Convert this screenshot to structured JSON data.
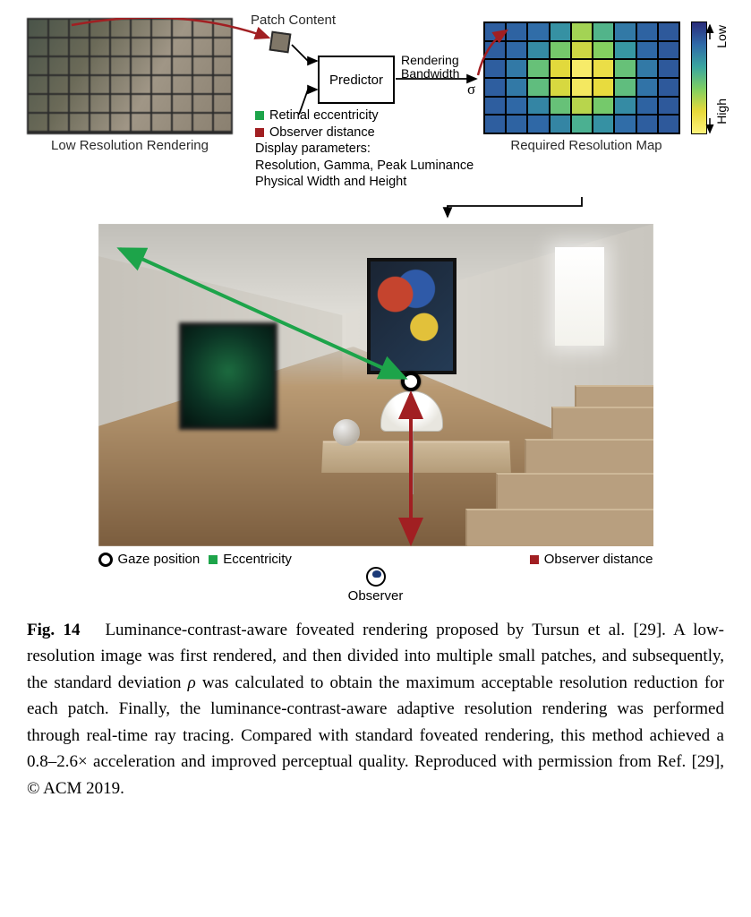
{
  "figure": {
    "top": {
      "lowres_caption": "Low Resolution Rendering",
      "patch_content_label": "Patch Content",
      "predictor_label": "Predictor",
      "rendering_bandwidth_label": "Rendering\nBandwidth",
      "resmap_caption": "Required Resolution Map",
      "colorbar": {
        "low": "Low",
        "high": "High"
      },
      "params": {
        "eccentricity": "Retinal eccentricity",
        "observer_dist": "Observer distance",
        "display_header": "Display parameters:",
        "display_line2": "Resolution, Gamma, Peak Luminance",
        "display_line3": "Physical Width and Height"
      },
      "colors": {
        "eccentricity": "#1da44a",
        "observer_dist": "#a11f22",
        "patch_arrow": "#a11f22",
        "sigma_arrow": "#a11f22"
      },
      "resolution_map": {
        "rows": 6,
        "cols": 9,
        "cells": [
          [
            0.2,
            0.22,
            0.26,
            0.38,
            0.72,
            0.52,
            0.3,
            0.22,
            0.18
          ],
          [
            0.2,
            0.24,
            0.36,
            0.62,
            0.8,
            0.66,
            0.4,
            0.24,
            0.18
          ],
          [
            0.2,
            0.3,
            0.58,
            0.84,
            0.96,
            0.88,
            0.58,
            0.3,
            0.18
          ],
          [
            0.2,
            0.3,
            0.56,
            0.82,
            0.94,
            0.86,
            0.56,
            0.28,
            0.18
          ],
          [
            0.2,
            0.24,
            0.34,
            0.58,
            0.76,
            0.62,
            0.36,
            0.22,
            0.18
          ],
          [
            0.2,
            0.22,
            0.24,
            0.34,
            0.5,
            0.38,
            0.26,
            0.2,
            0.18
          ]
        ],
        "color_stops": [
          [
            0.0,
            "#2a2c7a"
          ],
          [
            0.25,
            "#2f6aa8"
          ],
          [
            0.45,
            "#3aa6a0"
          ],
          [
            0.65,
            "#7fcf62"
          ],
          [
            0.85,
            "#e7d93a"
          ],
          [
            1.0,
            "#fdf27a"
          ]
        ]
      }
    },
    "legend": {
      "gaze": "Gaze position",
      "eccentricity": "Eccentricity",
      "observer_dist": "Observer distance",
      "observer": "Observer"
    }
  },
  "caption": {
    "label": "Fig. 14",
    "text_parts": {
      "a": "Luminance-contrast-aware foveated rendering proposed by Tursun et al. [29]. A low-resolution image was first rendered, and then divided into multiple small patches, and subsequently, the standard deviation ",
      "rho": "ρ",
      "b": " was calculated to obtain the maximum acceptable resolution reduction for each patch. Finally, the luminance-contrast-aware adaptive resolution rendering was performed through real-time ray tracing. Compared with standard foveated rendering, this method achieved a 0.8–2.6× acceleration and improved perceptual quality. Reproduced with permission from Ref. [29], © ACM 2019."
    }
  }
}
